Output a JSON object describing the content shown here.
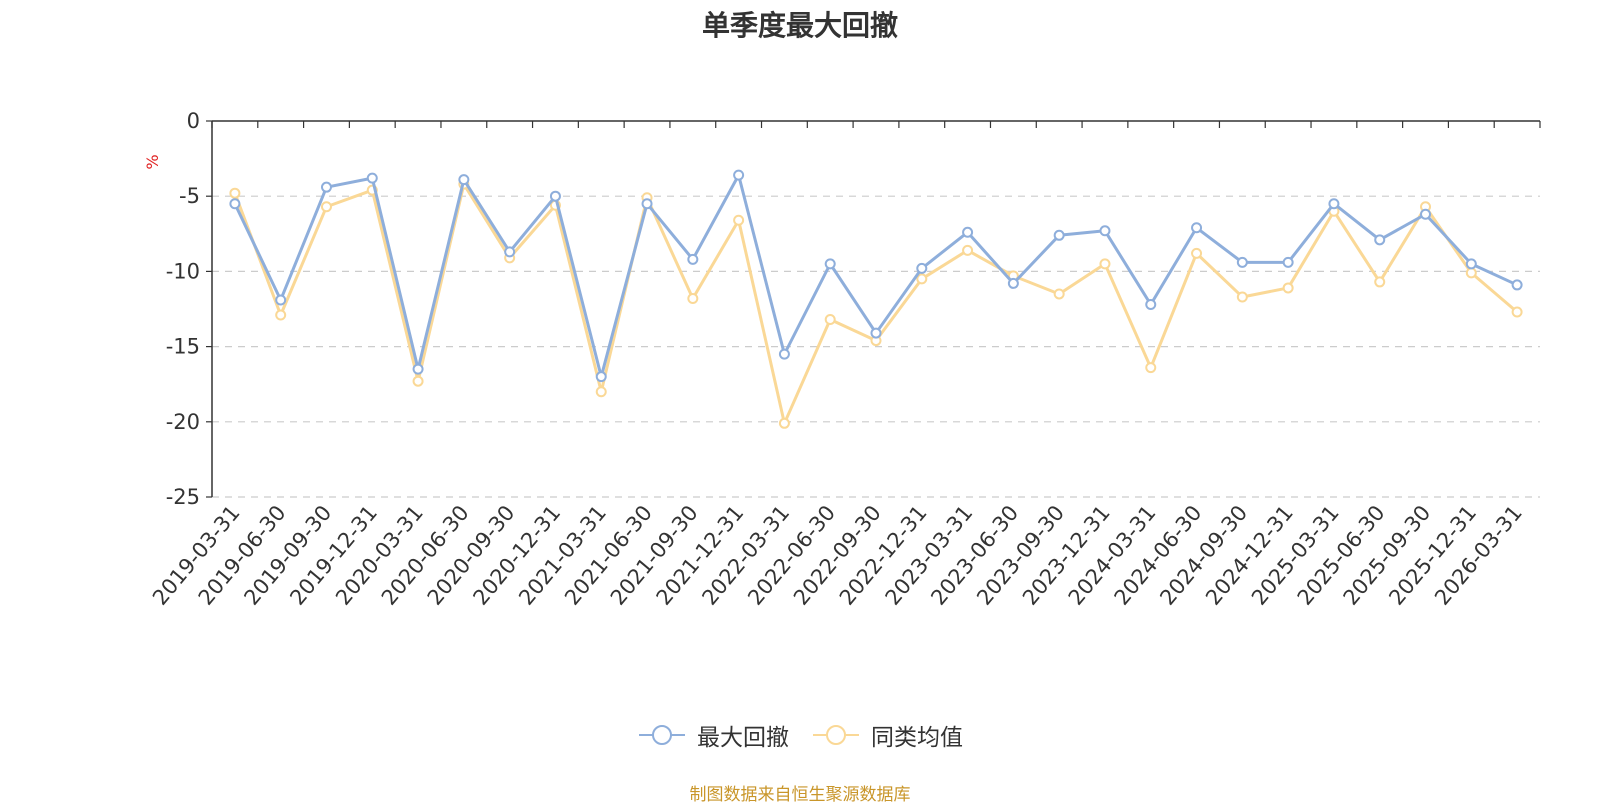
{
  "chart_data": {
    "type": "line",
    "title": "单季度最大回撤",
    "ylabel": "%",
    "xlabel": "",
    "ylim": [
      -25,
      0
    ],
    "yticks": [
      0,
      -5,
      -10,
      -15,
      -20,
      -25
    ],
    "grid": true,
    "legend_position": "bottom",
    "categories": [
      "2019-03-31",
      "2019-06-30",
      "2019-09-30",
      "2019-12-31",
      "2020-03-31",
      "2020-06-30",
      "2020-09-30",
      "2020-12-31",
      "2021-03-31",
      "2021-06-30",
      "2021-09-30",
      "2021-12-31",
      "2022-03-31",
      "2022-06-30",
      "2022-09-30",
      "2022-12-31",
      "2023-03-31",
      "2023-06-30",
      "2023-09-30",
      "2023-12-31",
      "2024-03-31",
      "2024-06-30",
      "2024-09-30",
      "2024-12-31",
      "2025-03-31",
      "2025-06-30",
      "2025-09-30",
      "2025-12-31",
      "2026-03-31"
    ],
    "series": [
      {
        "name": "最大回撤",
        "color": "#8eaedb",
        "values": [
          -5.5,
          -11.9,
          -4.4,
          -3.8,
          -16.5,
          -3.9,
          -8.7,
          -5.0,
          -17.0,
          -5.5,
          -9.2,
          -3.6,
          -15.5,
          -9.5,
          -14.1,
          -9.8,
          -7.4,
          -10.8,
          -7.6,
          -7.3,
          -12.2,
          -7.1,
          -9.4,
          -9.4,
          -5.5,
          -7.9,
          -6.2,
          -9.5,
          -10.9
        ]
      },
      {
        "name": "同类均值",
        "color": "#fad896",
        "values": [
          -4.8,
          -12.9,
          -5.7,
          -4.6,
          -17.3,
          -4.2,
          -9.1,
          -5.6,
          -18.0,
          -5.1,
          -11.8,
          -6.6,
          -20.1,
          -13.2,
          -14.6,
          -10.5,
          -8.6,
          -10.3,
          -11.5,
          -9.5,
          -16.4,
          -8.8,
          -11.7,
          -11.1,
          -6.0,
          -10.7,
          -5.7,
          -10.1,
          -12.7
        ]
      }
    ]
  },
  "source_text": "制图数据来自恒生聚源数据库",
  "colors": {
    "unit_label": "#e02020",
    "source_text": "#c9962a",
    "grid": "#cccccc",
    "axis": "#333333"
  }
}
